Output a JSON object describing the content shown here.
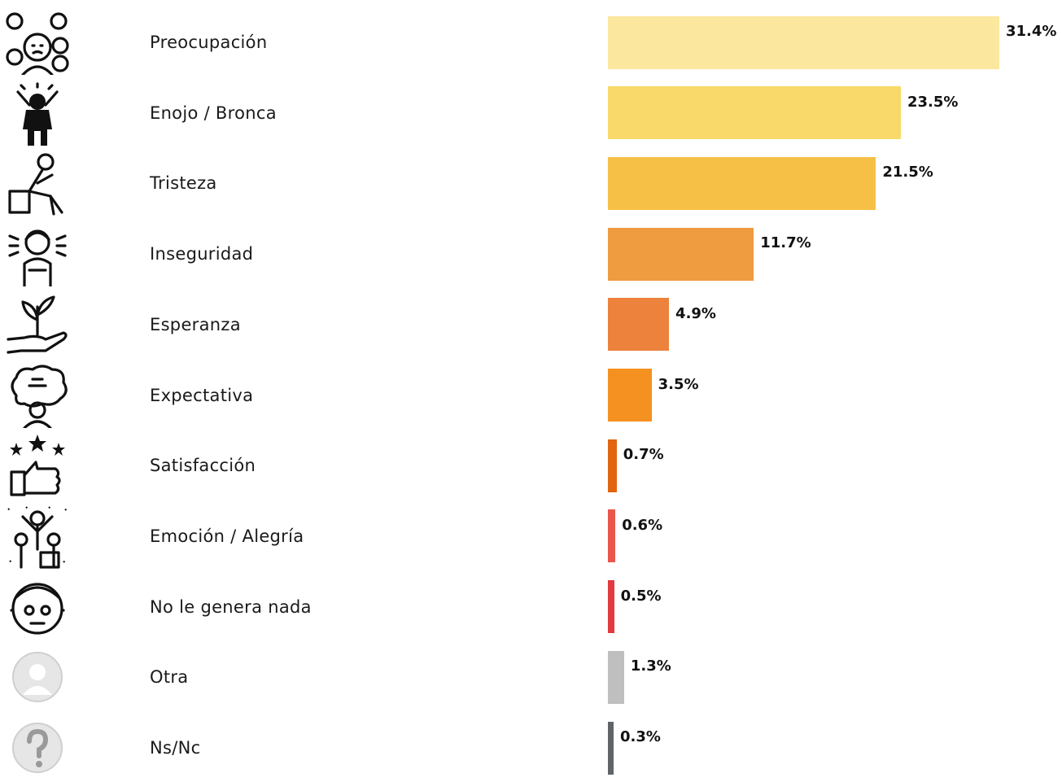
{
  "chart_data": {
    "type": "bar",
    "orientation": "horizontal",
    "categories": [
      "Preocupación",
      "Enojo / Bronca",
      "Tristeza",
      "Inseguridad",
      "Esperanza",
      "Expectativa",
      "Satisfacción",
      "Emoción / Alegría",
      "No le genera nada",
      "Otra",
      "Ns/Nc"
    ],
    "values": [
      31.4,
      23.5,
      21.5,
      11.7,
      4.9,
      3.5,
      0.7,
      0.6,
      0.5,
      1.3,
      0.3
    ],
    "value_labels": [
      "31.4%",
      "23.5%",
      "21.5%",
      "11.7%",
      "4.9%",
      "3.5%",
      "0.7%",
      "0.6%",
      "0.5%",
      "1.3%",
      "0.3%"
    ],
    "colors": [
      "#fce79f",
      "#f8d96a",
      "#f6c046",
      "#ef9b3f",
      "#ec823b",
      "#f59120",
      "#e1650f",
      "#e9564b",
      "#e23a3f",
      "#bfbfbf",
      "#5f6468"
    ],
    "icons": [
      "worried-faces-icon",
      "angry-person-icon",
      "sad-sitting-person-icon",
      "insecure-person-icon",
      "plant-in-hand-icon",
      "thinking-head-icon",
      "thumbs-up-stars-icon",
      "celebrating-people-icon",
      "neutral-face-icon",
      "generic-user-icon",
      "question-user-icon"
    ],
    "xlim": [
      0,
      31.4
    ],
    "grid": false,
    "legend": "none"
  }
}
